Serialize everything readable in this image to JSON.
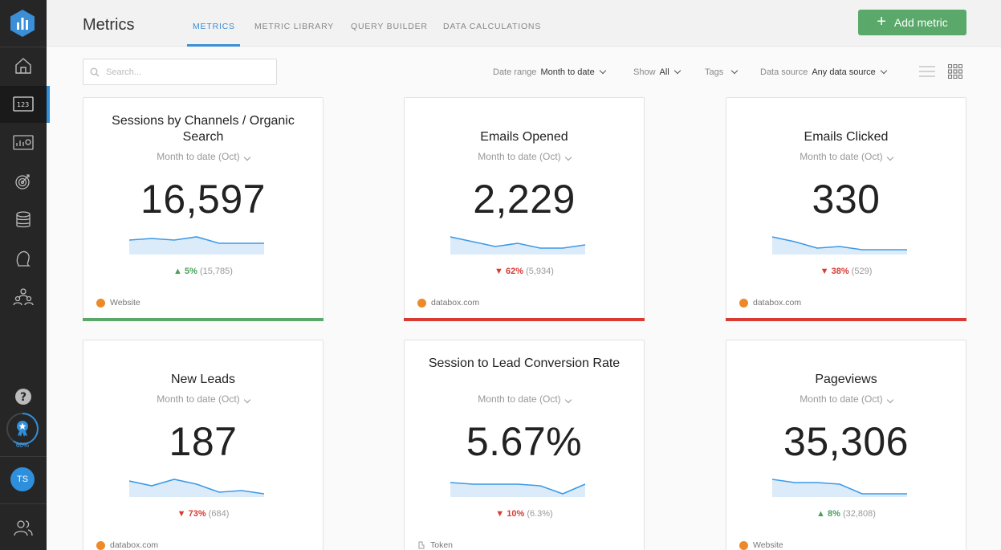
{
  "header": {
    "title": "Metrics",
    "tabs": [
      {
        "label": "METRICS",
        "active": true
      },
      {
        "label": "METRIC LIBRARY",
        "active": false
      },
      {
        "label": "QUERY BUILDER",
        "active": false
      },
      {
        "label": "DATA CALCULATIONS",
        "active": false
      }
    ],
    "add_button": "Add metric"
  },
  "toolbar": {
    "search_placeholder": "Search...",
    "date_range_label": "Date range",
    "date_range_value": "Month to date",
    "show_label": "Show",
    "show_value": "All",
    "tags_label": "Tags",
    "data_source_label": "Data source",
    "data_source_value": "Any data source"
  },
  "sidebar": {
    "progress_label": "60%",
    "avatar_initials": "TS"
  },
  "colors": {
    "accent": "#3b8fd6",
    "green": "#5aa86a",
    "red": "#d83a34",
    "sidebar": "#262626"
  },
  "cards": [
    {
      "title": "Sessions by Channels / Organic Search",
      "period": "Month to date (Oct)",
      "value": "16,597",
      "trend": "up",
      "change_arrow": "▲",
      "change_pct": "5%",
      "change_prev": "(15,785)",
      "source": "Website",
      "spark": [
        4,
        3,
        4,
        2,
        6,
        6,
        6
      ]
    },
    {
      "title": "Emails Opened",
      "period": "Month to date (Oct)",
      "value": "2,229",
      "trend": "down",
      "change_arrow": "▼",
      "change_pct": "62%",
      "change_prev": "(5,934)",
      "source": "databox.com",
      "spark": [
        2,
        5,
        8,
        6,
        9,
        9,
        7
      ]
    },
    {
      "title": "Emails Clicked",
      "period": "Month to date (Oct)",
      "value": "330",
      "trend": "down",
      "change_arrow": "▼",
      "change_pct": "38%",
      "change_prev": "(529)",
      "source": "databox.com",
      "spark": [
        2,
        5,
        9,
        8,
        10,
        10,
        10
      ]
    },
    {
      "title": "New Leads",
      "period": "Month to date (Oct)",
      "value": "187",
      "trend": "down",
      "change_arrow": "▼",
      "change_pct": "73%",
      "change_prev": "(684)",
      "source": "databox.com",
      "spark": [
        3,
        6,
        2,
        5,
        10,
        9,
        11
      ]
    },
    {
      "title": "Session to Lead Conversion Rate",
      "period": "Month to date (Oct)",
      "value": "5.67%",
      "trend": "down",
      "change_arrow": "▼",
      "change_pct": "10%",
      "change_prev": "(6.3%)",
      "source": "Token",
      "spark": [
        4,
        5,
        5,
        5,
        6,
        11,
        5
      ]
    },
    {
      "title": "Pageviews",
      "period": "Month to date (Oct)",
      "value": "35,306",
      "trend": "up",
      "change_arrow": "▲",
      "change_pct": "8%",
      "change_prev": "(32,808)",
      "source": "Website",
      "spark": [
        2,
        4,
        4,
        5,
        11,
        11,
        11
      ]
    }
  ]
}
